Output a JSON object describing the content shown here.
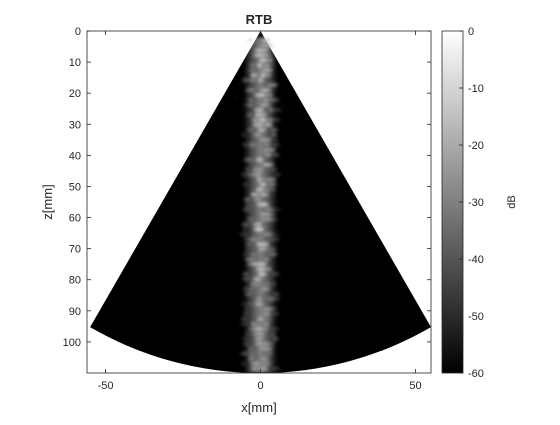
{
  "chart_data": {
    "type": "heatmap",
    "title": "RTB",
    "xlabel": "x[mm]",
    "ylabel": "z[mm]",
    "xlim": [
      -56,
      55
    ],
    "ylim": [
      110,
      0
    ],
    "y_reversed": true,
    "xticks": [
      -50,
      0,
      50
    ],
    "yticks": [
      0,
      10,
      20,
      30,
      40,
      50,
      60,
      70,
      80,
      90,
      100
    ],
    "colorbar": {
      "label": "dB",
      "range": [
        -60,
        0
      ],
      "ticks": [
        0,
        -10,
        -20,
        -30,
        -40,
        -50,
        -60
      ],
      "colormap": "gray"
    },
    "sector": {
      "apex_x": 0,
      "apex_z": 0,
      "half_angle_deg": 30,
      "max_depth": 110
    },
    "beam": {
      "center_x": 0,
      "width_mm": 11,
      "peak_db": -3
    }
  }
}
